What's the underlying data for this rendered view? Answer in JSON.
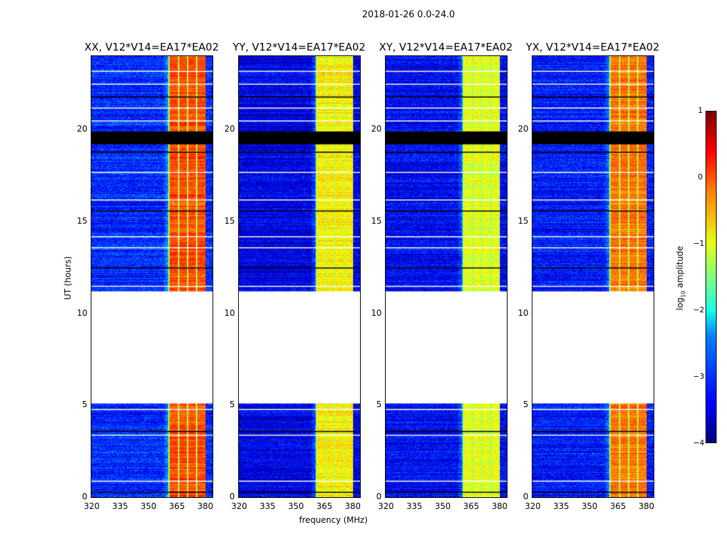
{
  "chart_data": {
    "type": "heatmap",
    "title": "2018-01-26 0.0-24.0",
    "xlabel": "frequency (MHz)",
    "ylabel": "UT (hours)",
    "xlim": [
      320,
      384
    ],
    "ylim": [
      0,
      24
    ],
    "xticks": [
      "320",
      "335",
      "350",
      "365",
      "380"
    ],
    "yticks": [
      "0",
      "5",
      "10",
      "15",
      "20"
    ],
    "panels": [
      {
        "title": "XX, V12*V14=EA17*EA02",
        "band_level": 0.0,
        "background_level": -3.2
      },
      {
        "title": "YY, V12*V14=EA17*EA02",
        "band_level": -0.8,
        "background_level": -3.5
      },
      {
        "title": "XY, V12*V14=EA17*EA02",
        "band_level": -1.0,
        "background_level": -3.4
      },
      {
        "title": "YX, V12*V14=EA17*EA02",
        "band_level": -0.2,
        "background_level": -3.3
      }
    ],
    "bright_band_MHz": [
      360.5,
      380
    ],
    "no_data_hours": [
      5.1,
      11.2
    ],
    "flagged_black_hours": [
      19.2,
      19.9
    ],
    "colorbar": {
      "label": "log10 amplitude",
      "label_main": "log",
      "label_sub": "10",
      "label_rest": " amplitude",
      "range": [
        -4,
        1
      ],
      "ticks": [
        "1",
        "0",
        "−1",
        "−2",
        "−3",
        "−4"
      ]
    }
  }
}
